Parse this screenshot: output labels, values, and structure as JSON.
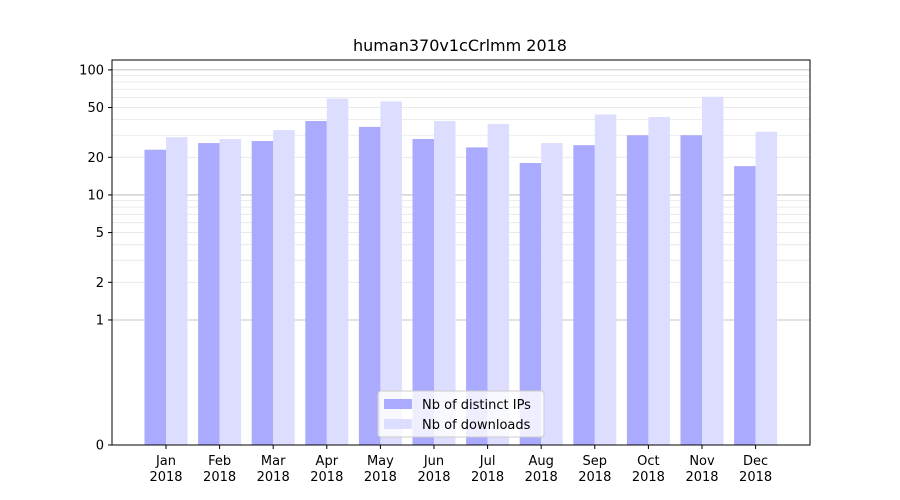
{
  "chart_data": {
    "type": "bar",
    "title": "human370v1cCrlmm 2018",
    "xlabel": "",
    "ylabel": "",
    "yscale": "symlog",
    "ylim": [
      0,
      120
    ],
    "yticks": [
      0,
      1,
      2,
      5,
      10,
      20,
      50,
      100
    ],
    "grid": true,
    "legend_position": "bottom-center",
    "categories": [
      [
        "Jan",
        "2018"
      ],
      [
        "Feb",
        "2018"
      ],
      [
        "Mar",
        "2018"
      ],
      [
        "Apr",
        "2018"
      ],
      [
        "May",
        "2018"
      ],
      [
        "Jun",
        "2018"
      ],
      [
        "Jul",
        "2018"
      ],
      [
        "Aug",
        "2018"
      ],
      [
        "Sep",
        "2018"
      ],
      [
        "Oct",
        "2018"
      ],
      [
        "Nov",
        "2018"
      ],
      [
        "Dec",
        "2018"
      ]
    ],
    "series": [
      {
        "name": "Nb of distinct IPs",
        "color": "#aaaaff",
        "values": [
          23,
          26,
          27,
          39,
          35,
          28,
          24,
          18,
          25,
          30,
          30,
          17
        ]
      },
      {
        "name": "Nb of downloads",
        "color": "#ddddff",
        "values": [
          29,
          28,
          33,
          59,
          56,
          39,
          37,
          26,
          44,
          42,
          61,
          32
        ]
      }
    ]
  }
}
